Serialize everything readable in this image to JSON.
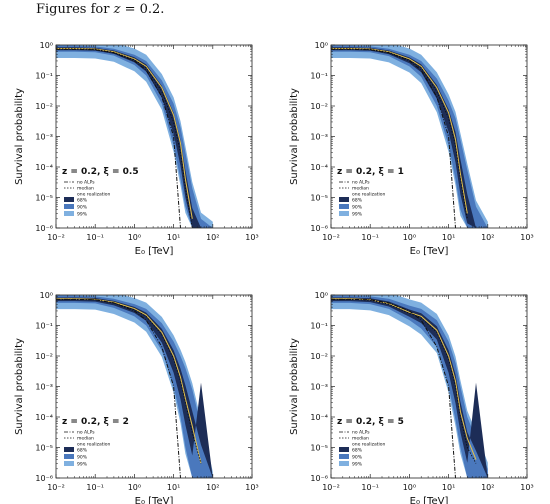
{
  "caption": {
    "prefix": "Figures for",
    "var": "z",
    "rest": " = 0.2."
  },
  "colors": {
    "band99": "#7fb0e0",
    "band95": "#4a78bd",
    "band68": "#1d2d57",
    "median": "#0b0b0b",
    "realization": "#e7c34a",
    "noalps": "#111111"
  },
  "chart_data": [
    {
      "type": "line",
      "annotation": "z = 0.2,   ξ = 0.5",
      "xlabel": "E₀ [TeV]",
      "ylabel": "Survival probability",
      "xscale": "log",
      "yscale": "log",
      "xlim": [
        0.01,
        1000
      ],
      "ylim": [
        1e-06,
        1
      ],
      "xticks": [
        "10⁻²",
        "10⁻¹",
        "10⁰",
        "10¹",
        "10²",
        "10³"
      ],
      "yticks": [
        "10⁰",
        "10⁻¹",
        "10⁻²",
        "10⁻³",
        "10⁻⁴",
        "10⁻⁵",
        "10⁻⁶"
      ],
      "legend": [
        "no ALPs",
        "median",
        "one realization",
        "68%",
        "90%",
        "99%"
      ],
      "x": [
        0.01,
        0.03,
        0.1,
        0.3,
        1,
        2,
        5,
        10,
        15,
        20,
        30,
        50,
        100
      ],
      "no_alps": [
        0.72,
        0.72,
        0.7,
        0.55,
        0.3,
        0.15,
        0.02,
        0.001,
        1e-06,
        null,
        null,
        null,
        null
      ],
      "median": [
        0.75,
        0.75,
        0.72,
        0.58,
        0.33,
        0.18,
        0.03,
        0.003,
        0.0003,
        2e-05,
        1e-06,
        null,
        null
      ],
      "band_low": [
        0.6,
        0.6,
        0.58,
        0.45,
        0.22,
        0.1,
        0.012,
        0.0005,
        4e-05,
        5e-06,
        1e-06,
        null,
        null
      ],
      "band_high": [
        0.95,
        0.95,
        0.9,
        0.75,
        0.48,
        0.3,
        0.07,
        0.012,
        0.002,
        0.0003,
        2e-05,
        2e-06,
        1e-06
      ],
      "realization": [
        0.77,
        0.77,
        0.74,
        0.6,
        0.35,
        0.2,
        0.04,
        0.005,
        0.0006,
        4e-05,
        2e-06,
        null,
        null
      ]
    },
    {
      "type": "line",
      "annotation": "z = 0.2,   ξ = 1",
      "xlabel": "E₀ [TeV]",
      "ylabel": "Survival probability",
      "xscale": "log",
      "yscale": "log",
      "xlim": [
        0.01,
        1000
      ],
      "ylim": [
        1e-06,
        1
      ],
      "xticks": [
        "10⁻²",
        "10⁻¹",
        "10⁰",
        "10¹",
        "10²",
        "10³"
      ],
      "yticks": [
        "10⁰",
        "10⁻¹",
        "10⁻²",
        "10⁻³",
        "10⁻⁴",
        "10⁻⁵",
        "10⁻⁶"
      ],
      "legend": [
        "no ALPs",
        "median",
        "one realization",
        "68%",
        "90%",
        "99%"
      ],
      "x": [
        0.01,
        0.03,
        0.1,
        0.3,
        1,
        2,
        5,
        10,
        15,
        20,
        30,
        50,
        100
      ],
      "no_alps": [
        0.72,
        0.72,
        0.7,
        0.55,
        0.3,
        0.15,
        0.02,
        0.001,
        1e-06,
        null,
        null,
        null,
        null
      ],
      "median": [
        0.75,
        0.75,
        0.72,
        0.58,
        0.32,
        0.18,
        0.03,
        0.004,
        0.0005,
        4e-05,
        2e-06,
        null,
        null
      ],
      "band_low": [
        0.6,
        0.6,
        0.58,
        0.43,
        0.2,
        0.09,
        0.01,
        0.0005,
        4e-05,
        4e-06,
        1e-06,
        null,
        null
      ],
      "band_high": [
        0.95,
        0.95,
        0.9,
        0.75,
        0.48,
        0.3,
        0.08,
        0.015,
        0.004,
        0.0008,
        8e-05,
        5e-06,
        1e-06
      ],
      "realization": [
        0.77,
        0.77,
        0.74,
        0.6,
        0.35,
        0.2,
        0.04,
        0.006,
        0.0008,
        6e-05,
        3e-06,
        null,
        null
      ]
    },
    {
      "type": "line",
      "annotation": "z = 0.2,   ξ = 2",
      "xlabel": "E₀ [TeV]",
      "ylabel": "Survival probability",
      "xscale": "log",
      "yscale": "log",
      "xlim": [
        0.01,
        1000
      ],
      "ylim": [
        1e-06,
        1
      ],
      "xticks": [
        "10⁻²",
        "10⁻¹",
        "10⁰",
        "10¹",
        "10²",
        "10³"
      ],
      "yticks": [
        "10⁰",
        "10⁻¹",
        "10⁻²",
        "10⁻³",
        "10⁻⁴",
        "10⁻⁵",
        "10⁻⁶"
      ],
      "legend": [
        "no ALPs",
        "median",
        "one realization",
        "68%",
        "90%",
        "99%"
      ],
      "x": [
        0.01,
        0.03,
        0.1,
        0.3,
        1,
        2,
        5,
        10,
        15,
        20,
        30,
        50,
        100
      ],
      "no_alps": [
        0.72,
        0.72,
        0.7,
        0.55,
        0.3,
        0.15,
        0.02,
        0.001,
        1e-06,
        null,
        null,
        null,
        null
      ],
      "median": [
        0.72,
        0.72,
        0.7,
        0.55,
        0.33,
        0.2,
        0.05,
        0.008,
        0.0015,
        0.0003,
        3e-05,
        3e-06,
        null
      ],
      "band_low": [
        0.55,
        0.55,
        0.53,
        0.38,
        0.2,
        0.1,
        0.015,
        0.001,
        0.0001,
        1e-05,
        1e-06,
        null,
        null
      ],
      "band_high": [
        0.95,
        0.95,
        0.9,
        0.75,
        0.5,
        0.35,
        0.12,
        0.03,
        0.01,
        0.004,
        0.0008,
        5e-05,
        1e-06
      ],
      "realization": [
        0.75,
        0.75,
        0.72,
        0.58,
        0.36,
        0.22,
        0.06,
        0.01,
        0.002,
        0.0004,
        5e-05,
        3e-06,
        null
      ]
    },
    {
      "type": "line",
      "annotation": "z = 0.2,   ξ = 5",
      "xlabel": "E₀ [TeV]",
      "ylabel": "Survival probability",
      "xscale": "log",
      "yscale": "log",
      "xlim": [
        0.01,
        1000
      ],
      "ylim": [
        1e-06,
        1
      ],
      "xticks": [
        "10⁻²",
        "10⁻¹",
        "10⁰",
        "10¹",
        "10²",
        "10³"
      ],
      "yticks": [
        "10⁰",
        "10⁻¹",
        "10⁻²",
        "10⁻³",
        "10⁻⁴",
        "10⁻⁵",
        "10⁻⁶"
      ],
      "legend": [
        "no ALPs",
        "median",
        "one realization",
        "68%",
        "90%",
        "99%"
      ],
      "x": [
        0.01,
        0.03,
        0.1,
        0.3,
        1,
        2,
        5,
        10,
        15,
        20,
        30,
        50,
        100
      ],
      "no_alps": [
        0.72,
        0.72,
        0.7,
        0.55,
        0.3,
        0.15,
        0.02,
        0.001,
        1e-06,
        null,
        null,
        null,
        null
      ],
      "median": [
        0.72,
        0.72,
        0.68,
        0.5,
        0.25,
        0.18,
        0.06,
        0.008,
        0.001,
        0.0001,
        1e-05,
        3e-06,
        null
      ],
      "band_low": [
        0.55,
        0.55,
        0.5,
        0.35,
        0.15,
        0.08,
        0.02,
        0.001,
        8e-05,
        1e-05,
        1e-06,
        null,
        null
      ],
      "band_high": [
        0.95,
        0.95,
        0.9,
        0.75,
        0.45,
        0.35,
        0.15,
        0.03,
        0.006,
        0.001,
        0.0001,
        2e-05,
        2e-06
      ],
      "realization": [
        0.75,
        0.75,
        0.7,
        0.52,
        0.27,
        0.2,
        0.07,
        0.01,
        0.0015,
        0.00015,
        2e-05,
        4e-06,
        null
      ]
    }
  ]
}
